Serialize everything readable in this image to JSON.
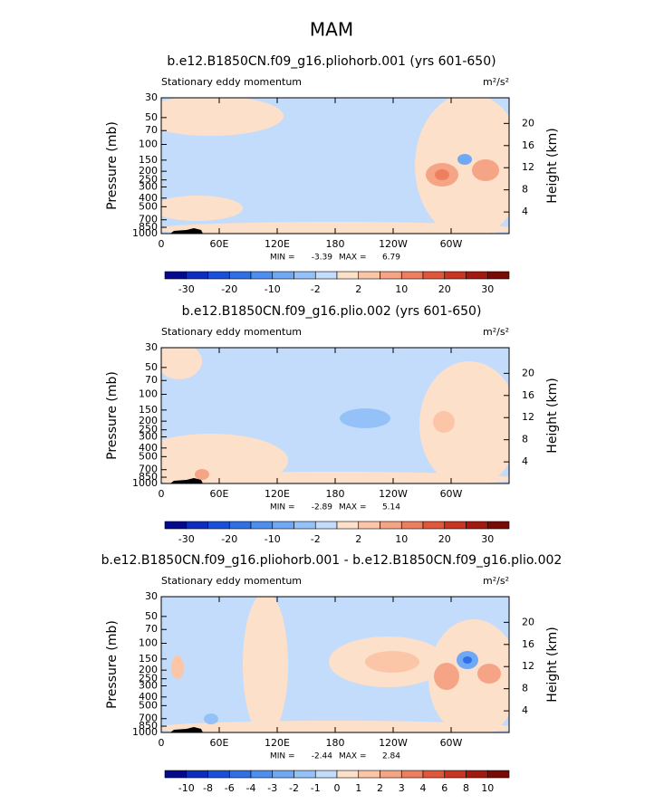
{
  "page_title": "MAM",
  "chart_data": [
    {
      "type": "contour",
      "title": "b.e12.B1850CN.f09_g16.pliohorb.001 (yrs 601-650)",
      "left_label": "Stationary eddy momentum",
      "units": "m²/s²",
      "y_label": "Pressure (mb)",
      "y2_label": "Height (km)",
      "log_y": true,
      "ylim": [
        30,
        1000
      ],
      "yticks": [
        30,
        50,
        70,
        100,
        150,
        200,
        250,
        300,
        400,
        500,
        700,
        850,
        1000
      ],
      "y2ticks": [
        4,
        8,
        12,
        16,
        20
      ],
      "xlim": [
        0,
        360
      ],
      "xticks": [
        0,
        {
          "value": 60,
          "label": "60E"
        },
        {
          "value": 120,
          "label": "120E"
        },
        180,
        {
          "value": 240,
          "label": "120W"
        },
        {
          "value": 300,
          "label": "60W"
        }
      ],
      "min_label": "MIN =",
      "min": -3.39,
      "max_label": "MAX =",
      "max": 6.79,
      "colorbar": {
        "colors": [
          "#050a8c",
          "#0d2dbf",
          "#1a50d9",
          "#3070e6",
          "#4d8ff0",
          "#6fa8f5",
          "#94c2f8",
          "#c4dcfb",
          "#fde0c9",
          "#fbc6a8",
          "#f5a585",
          "#ed7f5f",
          "#e0573b",
          "#c83520",
          "#a31a10",
          "#7a0a05"
        ],
        "labels": [
          -30,
          -20,
          -10,
          -2,
          2,
          10,
          20,
          30
        ],
        "label_every": 2
      }
    },
    {
      "type": "contour",
      "title": "b.e12.B1850CN.f09_g16.plio.002 (yrs 601-650)",
      "left_label": "Stationary eddy momentum",
      "units": "m²/s²",
      "y_label": "Pressure (mb)",
      "y2_label": "Height (km)",
      "log_y": true,
      "ylim": [
        30,
        1000
      ],
      "yticks": [
        30,
        50,
        70,
        100,
        150,
        200,
        250,
        300,
        400,
        500,
        700,
        850,
        1000
      ],
      "y2ticks": [
        4,
        8,
        12,
        16,
        20
      ],
      "xlim": [
        0,
        360
      ],
      "xticks": [
        0,
        {
          "value": 60,
          "label": "60E"
        },
        {
          "value": 120,
          "label": "120E"
        },
        180,
        {
          "value": 240,
          "label": "120W"
        },
        {
          "value": 300,
          "label": "60W"
        }
      ],
      "min_label": "MIN =",
      "min": -2.89,
      "max_label": "MAX =",
      "max": 5.14,
      "colorbar": {
        "colors": [
          "#050a8c",
          "#0d2dbf",
          "#1a50d9",
          "#3070e6",
          "#4d8ff0",
          "#6fa8f5",
          "#94c2f8",
          "#c4dcfb",
          "#fde0c9",
          "#fbc6a8",
          "#f5a585",
          "#ed7f5f",
          "#e0573b",
          "#c83520",
          "#a31a10",
          "#7a0a05"
        ],
        "labels": [
          -30,
          -20,
          -10,
          -2,
          2,
          10,
          20,
          30
        ],
        "label_every": 2
      }
    },
    {
      "type": "contour",
      "title": "b.e12.B1850CN.f09_g16.pliohorb.001 - b.e12.B1850CN.f09_g16.plio.002",
      "left_label": "Stationary eddy momentum",
      "units": "m²/s²",
      "y_label": "Pressure (mb)",
      "y2_label": "Height (km)",
      "log_y": true,
      "ylim": [
        30,
        1000
      ],
      "yticks": [
        30,
        50,
        70,
        100,
        150,
        200,
        250,
        300,
        400,
        500,
        700,
        850,
        1000
      ],
      "y2ticks": [
        4,
        8,
        12,
        16,
        20
      ],
      "xlim": [
        0,
        360
      ],
      "xticks": [
        0,
        {
          "value": 60,
          "label": "60E"
        },
        {
          "value": 120,
          "label": "120E"
        },
        180,
        {
          "value": 240,
          "label": "120W"
        },
        {
          "value": 300,
          "label": "60W"
        }
      ],
      "min_label": "MIN =",
      "min": -2.44,
      "max_label": "MAX =",
      "max": 2.84,
      "colorbar": {
        "colors": [
          "#050a8c",
          "#0d2dbf",
          "#1a50d9",
          "#3070e6",
          "#4d8ff0",
          "#6fa8f5",
          "#94c2f8",
          "#c4dcfb",
          "#fde0c9",
          "#fbc6a8",
          "#f5a585",
          "#ed7f5f",
          "#e0573b",
          "#c83520",
          "#a31a10",
          "#7a0a05"
        ],
        "labels": [
          -10,
          -8,
          -6,
          -4,
          -3,
          -2,
          -1,
          0,
          1,
          2,
          3,
          4,
          6,
          8,
          10
        ],
        "label_every": 1
      }
    }
  ]
}
